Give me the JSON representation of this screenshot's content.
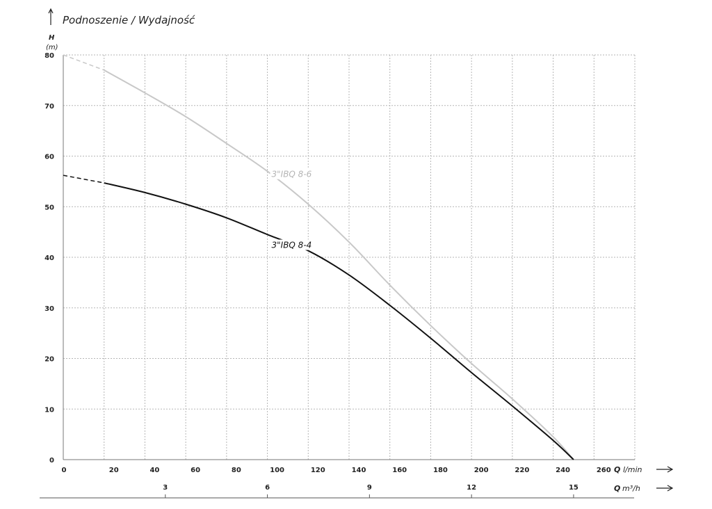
{
  "chart_data": {
    "type": "line",
    "title": "Podnoszenie / Wydajność",
    "ylabel": "H",
    "yunit": "(m)",
    "xlabel": "Q",
    "xunit": "l/min",
    "x2label": "Q",
    "x2unit": "m³/h",
    "xlim": [
      0,
      280
    ],
    "ylim": [
      0,
      80
    ],
    "xticks": [
      0,
      20,
      40,
      60,
      80,
      100,
      120,
      140,
      160,
      180,
      200,
      220,
      240,
      260
    ],
    "yticks": [
      0,
      10,
      20,
      30,
      40,
      50,
      60,
      70,
      80
    ],
    "x2ticks": [
      3,
      6,
      9,
      12,
      15
    ],
    "grid": true,
    "series": [
      {
        "name": "3\"IBQ 8-6",
        "color": "#c8c8c8",
        "dashed_points": [
          [
            0,
            80
          ],
          [
            20,
            77
          ]
        ],
        "points": [
          [
            20,
            77
          ],
          [
            40,
            72.5
          ],
          [
            60,
            67.8
          ],
          [
            80,
            62.5
          ],
          [
            100,
            57
          ],
          [
            120,
            50.5
          ],
          [
            140,
            43
          ],
          [
            160,
            34.5
          ],
          [
            180,
            26.5
          ],
          [
            200,
            19
          ],
          [
            220,
            12
          ],
          [
            240,
            4.5
          ],
          [
            250,
            0
          ]
        ]
      },
      {
        "name": "3\"IBQ 8-4",
        "color": "#111111",
        "dashed_points": [
          [
            0,
            56.2
          ],
          [
            20,
            54.7
          ]
        ],
        "points": [
          [
            20,
            54.7
          ],
          [
            40,
            52.8
          ],
          [
            60,
            50.5
          ],
          [
            80,
            47.8
          ],
          [
            100,
            44.5
          ],
          [
            120,
            41.3
          ],
          [
            140,
            36.5
          ],
          [
            160,
            30.5
          ],
          [
            180,
            24
          ],
          [
            200,
            17.2
          ],
          [
            220,
            10.6
          ],
          [
            240,
            3.8
          ],
          [
            250,
            0
          ]
        ]
      }
    ]
  }
}
